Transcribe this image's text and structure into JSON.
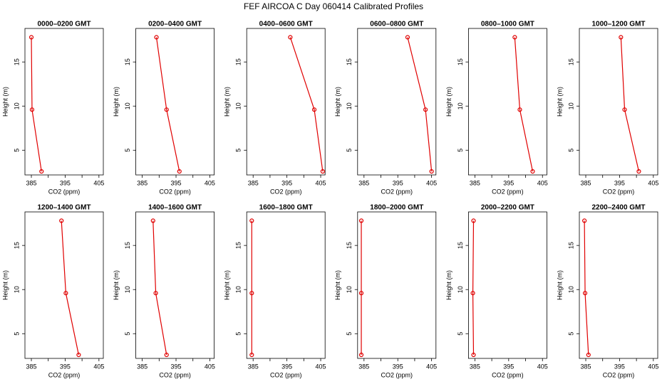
{
  "title": "FEF AIRCOA C  Day 060414  Calibrated Profiles",
  "chart_data": [
    {
      "type": "line",
      "title": "0000–0200 GMT",
      "x_label": "CO2 (ppm)",
      "y_label": "Height (m)",
      "color": "#e00000",
      "x": [
        385.0,
        385.2,
        388.0
      ],
      "y": [
        17.8,
        9.6,
        2.6
      ],
      "xlim": [
        383.1,
        406.3
      ],
      "ylim": [
        2.2,
        18.8
      ],
      "xticks": [
        385,
        395,
        405
      ],
      "xminorticks": [
        390,
        400
      ],
      "yticks": [
        5,
        10,
        15
      ]
    },
    {
      "type": "line",
      "title": "0200–0400 GMT",
      "x_label": "CO2 (ppm)",
      "y_label": "Height (m)",
      "color": "#e00000",
      "x": [
        389.2,
        392.2,
        396.0
      ],
      "y": [
        17.8,
        9.6,
        2.6
      ],
      "xlim": [
        383.1,
        406.3
      ],
      "ylim": [
        2.2,
        18.8
      ],
      "xticks": [
        385,
        395,
        405
      ],
      "xminorticks": [
        390,
        400
      ],
      "yticks": [
        5,
        10,
        15
      ]
    },
    {
      "type": "line",
      "title": "0400–0600 GMT",
      "x_label": "CO2 (ppm)",
      "y_label": "Height (m)",
      "color": "#e00000",
      "x": [
        396.0,
        403.1,
        405.6
      ],
      "y": [
        17.8,
        9.6,
        2.6
      ],
      "xlim": [
        383.1,
        406.3
      ],
      "ylim": [
        2.2,
        18.8
      ],
      "xticks": [
        385,
        395,
        405
      ],
      "xminorticks": [
        390,
        400
      ],
      "yticks": [
        5,
        10,
        15
      ]
    },
    {
      "type": "line",
      "title": "0600–0800 GMT",
      "x_label": "CO2 (ppm)",
      "y_label": "Height (m)",
      "color": "#e00000",
      "x": [
        397.9,
        403.2,
        405.0
      ],
      "y": [
        17.8,
        9.6,
        2.6
      ],
      "xlim": [
        383.1,
        406.3
      ],
      "ylim": [
        2.2,
        18.8
      ],
      "xticks": [
        385,
        395,
        405
      ],
      "xminorticks": [
        390,
        400
      ],
      "yticks": [
        5,
        10,
        15
      ]
    },
    {
      "type": "line",
      "title": "0800–1000 GMT",
      "x_label": "CO2 (ppm)",
      "y_label": "Height (m)",
      "color": "#e00000",
      "x": [
        396.8,
        398.3,
        402.1
      ],
      "y": [
        17.8,
        9.6,
        2.6
      ],
      "xlim": [
        383.1,
        406.3
      ],
      "ylim": [
        2.2,
        18.8
      ],
      "xticks": [
        385,
        395,
        405
      ],
      "xminorticks": [
        390,
        400
      ],
      "yticks": [
        5,
        10,
        15
      ]
    },
    {
      "type": "line",
      "title": "1000–1200 GMT",
      "x_label": "CO2 (ppm)",
      "y_label": "Height (m)",
      "color": "#e00000",
      "x": [
        395.4,
        396.5,
        400.7
      ],
      "y": [
        17.8,
        9.6,
        2.6
      ],
      "xlim": [
        383.1,
        406.3
      ],
      "ylim": [
        2.2,
        18.8
      ],
      "xticks": [
        385,
        395,
        405
      ],
      "xminorticks": [
        390,
        400
      ],
      "yticks": [
        5,
        10,
        15
      ]
    },
    {
      "type": "line",
      "title": "1200–1400 GMT",
      "x_label": "CO2 (ppm)",
      "y_label": "Height (m)",
      "color": "#e00000",
      "x": [
        393.9,
        395.2,
        399.0
      ],
      "y": [
        17.8,
        9.6,
        2.6
      ],
      "xlim": [
        383.1,
        406.3
      ],
      "ylim": [
        2.2,
        18.8
      ],
      "xticks": [
        385,
        395,
        405
      ],
      "xminorticks": [
        390,
        400
      ],
      "yticks": [
        5,
        10,
        15
      ]
    },
    {
      "type": "line",
      "title": "1400–1600 GMT",
      "x_label": "CO2 (ppm)",
      "y_label": "Height (m)",
      "color": "#e00000",
      "x": [
        388.2,
        389.0,
        392.2
      ],
      "y": [
        17.8,
        9.6,
        2.6
      ],
      "xlim": [
        383.1,
        406.3
      ],
      "ylim": [
        2.2,
        18.8
      ],
      "xticks": [
        385,
        395,
        405
      ],
      "xminorticks": [
        390,
        400
      ],
      "yticks": [
        5,
        10,
        15
      ]
    },
    {
      "type": "line",
      "title": "1600–1800 GMT",
      "x_label": "CO2 (ppm)",
      "y_label": "Height (m)",
      "color": "#e00000",
      "x": [
        384.6,
        384.6,
        384.6
      ],
      "y": [
        17.8,
        9.6,
        2.6
      ],
      "xlim": [
        383.1,
        406.3
      ],
      "ylim": [
        2.2,
        18.8
      ],
      "xticks": [
        385,
        395,
        405
      ],
      "xminorticks": [
        390,
        400
      ],
      "yticks": [
        5,
        10,
        15
      ]
    },
    {
      "type": "line",
      "title": "1800–2000 GMT",
      "x_label": "CO2 (ppm)",
      "y_label": "Height (m)",
      "color": "#e00000",
      "x": [
        384.2,
        384.2,
        384.2
      ],
      "y": [
        17.8,
        9.6,
        2.6
      ],
      "xlim": [
        383.1,
        406.3
      ],
      "ylim": [
        2.2,
        18.8
      ],
      "xticks": [
        385,
        395,
        405
      ],
      "xminorticks": [
        390,
        400
      ],
      "yticks": [
        5,
        10,
        15
      ]
    },
    {
      "type": "line",
      "title": "2000–2200 GMT",
      "x_label": "CO2 (ppm)",
      "y_label": "Height (m)",
      "color": "#e00000",
      "x": [
        384.6,
        384.4,
        384.6
      ],
      "y": [
        17.8,
        9.6,
        2.6
      ],
      "xlim": [
        383.1,
        406.3
      ],
      "ylim": [
        2.2,
        18.8
      ],
      "xticks": [
        385,
        395,
        405
      ],
      "xminorticks": [
        390,
        400
      ],
      "yticks": [
        5,
        10,
        15
      ]
    },
    {
      "type": "line",
      "title": "2200–2400 GMT",
      "x_label": "CO2 (ppm)",
      "y_label": "Height (m)",
      "color": "#e00000",
      "x": [
        384.6,
        384.8,
        385.8
      ],
      "y": [
        17.8,
        9.6,
        2.6
      ],
      "xlim": [
        383.1,
        406.3
      ],
      "ylim": [
        2.2,
        18.8
      ],
      "xticks": [
        385,
        395,
        405
      ],
      "xminorticks": [
        390,
        400
      ],
      "yticks": [
        5,
        10,
        15
      ]
    }
  ]
}
